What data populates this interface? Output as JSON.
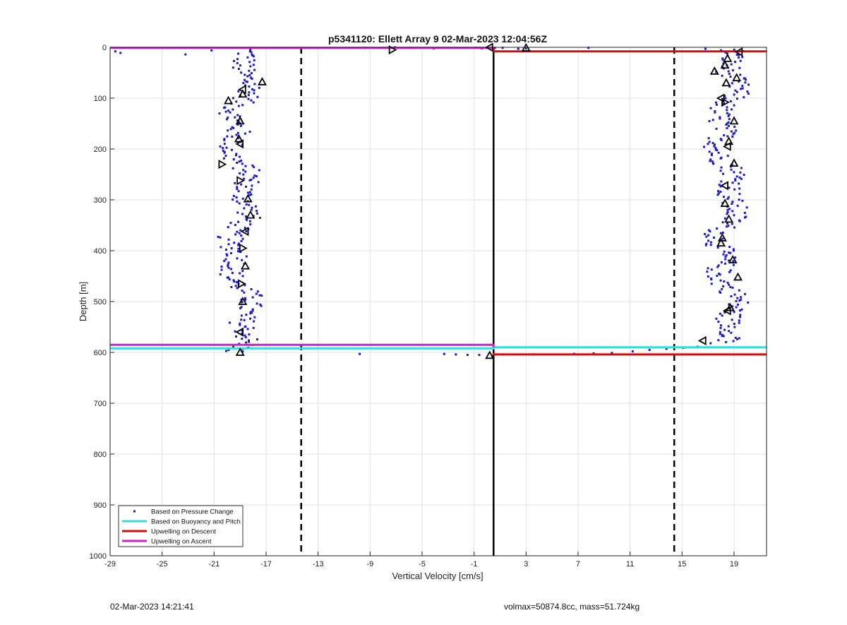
{
  "chart_data": {
    "type": "scatter",
    "title": "p5341120: Ellett Array 9 02-Mar-2023 12:04:56Z",
    "xlabel": "Vertical Velocity [cm/s]",
    "ylabel": "Depth [m]",
    "xlim": [
      -29,
      21.5
    ],
    "ylim": [
      0,
      1000
    ],
    "y_reversed": true,
    "grid": true,
    "legend_placement": "bottom-left",
    "xticks": [
      -29,
      -25,
      -21,
      -17,
      -13,
      -9,
      -5,
      -1,
      3,
      7,
      11,
      15,
      19
    ],
    "yticks": [
      0,
      100,
      200,
      300,
      400,
      500,
      600,
      700,
      800,
      900,
      1000
    ],
    "colors": {
      "pressure": "#1a1acc",
      "buoyancy": "#33dddd",
      "descent": "#cc1111",
      "ascent": "#cc22cc",
      "reference": "#000000",
      "grid": "#e2e2e2"
    },
    "legend": [
      {
        "label": "Based on Pressure Change",
        "marker": "dot",
        "color": "#1a1acc"
      },
      {
        "label": "Based on Buoyancy and Pitch",
        "marker": "line",
        "color": "#33dddd"
      },
      {
        "label": "Upwelling on Descent",
        "marker": "line",
        "color": "#cc1111"
      },
      {
        "label": "Upwelling on Ascent",
        "marker": "line",
        "color": "#cc22cc"
      }
    ],
    "reference_lines": {
      "solid_x": 0.5,
      "dashed_x": [
        -14.3,
        14.4
      ]
    },
    "series": [
      {
        "name": "Based on Pressure Change",
        "segments": [
          {
            "depth_from": 5,
            "depth_to": 600,
            "center": -19.0,
            "spread": 1.0
          },
          {
            "depth_from": 5,
            "depth_to": 580,
            "center": 18.4,
            "spread": 1.0
          }
        ],
        "surface_points": [
          [
            -28.6,
            8
          ],
          [
            -28.2,
            11
          ],
          [
            -23.2,
            14
          ],
          [
            -21.2,
            6
          ],
          [
            -9.4,
            1
          ],
          [
            -7.1,
            0
          ],
          [
            -5.9,
            1
          ],
          [
            -4.1,
            2
          ],
          [
            -0.9,
            1
          ],
          [
            -0.4,
            2
          ],
          [
            0.6,
            1
          ],
          [
            1.2,
            1
          ],
          [
            2.4,
            3
          ],
          [
            3.0,
            2
          ],
          [
            7.8,
            1
          ],
          [
            16.8,
            3
          ],
          [
            18.0,
            6
          ]
        ],
        "bottom_points": [
          [
            -9.8,
            603
          ],
          [
            -3.3,
            603
          ],
          [
            -2.4,
            604
          ],
          [
            -1.5,
            605
          ],
          [
            -0.6,
            605
          ],
          [
            0.4,
            607
          ],
          [
            1.2,
            604
          ],
          [
            3.6,
            604
          ],
          [
            6.7,
            603
          ],
          [
            8.2,
            602
          ],
          [
            9.6,
            601
          ],
          [
            11.2,
            598
          ],
          [
            12.5,
            595
          ],
          [
            13.8,
            593
          ],
          [
            15.1,
            591
          ],
          [
            16.2,
            589
          ],
          [
            17.2,
            582
          ],
          [
            17.8,
            576
          ],
          [
            18.2,
            568
          ]
        ]
      },
      {
        "name": "Based on Buoyancy and Pitch",
        "polyline": [
          [
            -29,
            592
          ],
          [
            0.5,
            592
          ],
          [
            0.5,
            590
          ],
          [
            21.5,
            590
          ]
        ]
      },
      {
        "name": "Upwelling on Descent",
        "polyline": [
          [
            0.5,
            0
          ],
          [
            0.5,
            8
          ],
          [
            21.5,
            8
          ]
        ],
        "polyline2": [
          [
            0.5,
            601
          ],
          [
            0.5,
            604
          ],
          [
            21.5,
            604
          ]
        ]
      },
      {
        "name": "Upwelling on Ascent",
        "polyline": [
          [
            -29,
            1
          ],
          [
            0.5,
            1
          ]
        ],
        "polyline2": [
          [
            -29,
            585
          ],
          [
            0.5,
            585
          ],
          [
            0.5,
            590
          ]
        ]
      },
      {
        "name": "triangle_markers",
        "points": [
          {
            "x": -19.0,
            "y": 600,
            "d": "up"
          },
          {
            "x": -19.0,
            "y": 560,
            "d": "left"
          },
          {
            "x": -18.8,
            "y": 500,
            "d": "up"
          },
          {
            "x": -18.9,
            "y": 465,
            "d": "right"
          },
          {
            "x": -18.6,
            "y": 430,
            "d": "up"
          },
          {
            "x": -18.8,
            "y": 395,
            "d": "right"
          },
          {
            "x": -18.6,
            "y": 362,
            "d": "left"
          },
          {
            "x": -18.2,
            "y": 330,
            "d": "up"
          },
          {
            "x": -18.4,
            "y": 298,
            "d": "up"
          },
          {
            "x": -19.0,
            "y": 262,
            "d": "right"
          },
          {
            "x": -20.4,
            "y": 230,
            "d": "right"
          },
          {
            "x": -19.0,
            "y": 190,
            "d": "left"
          },
          {
            "x": -19.1,
            "y": 180,
            "d": "up"
          },
          {
            "x": -19.0,
            "y": 145,
            "d": "up"
          },
          {
            "x": -19.9,
            "y": 105,
            "d": "up"
          },
          {
            "x": -18.8,
            "y": 92,
            "d": "up"
          },
          {
            "x": -18.8,
            "y": 83,
            "d": "left"
          },
          {
            "x": -17.3,
            "y": 68,
            "d": "up"
          },
          {
            "x": -7.3,
            "y": 5,
            "d": "right"
          },
          {
            "x": 0.2,
            "y": 0,
            "d": "left"
          },
          {
            "x": 3.0,
            "y": 1,
            "d": "up"
          },
          {
            "x": 0.2,
            "y": 606,
            "d": "up"
          },
          {
            "x": 19.4,
            "y": 9,
            "d": "left"
          },
          {
            "x": 18.5,
            "y": 22,
            "d": "up"
          },
          {
            "x": 18.3,
            "y": 35,
            "d": "up"
          },
          {
            "x": 17.5,
            "y": 47,
            "d": "up"
          },
          {
            "x": 19.2,
            "y": 60,
            "d": "up"
          },
          {
            "x": 18.4,
            "y": 70,
            "d": "up"
          },
          {
            "x": 18.0,
            "y": 100,
            "d": "left"
          },
          {
            "x": 18.3,
            "y": 108,
            "d": "right"
          },
          {
            "x": 19.0,
            "y": 145,
            "d": "up"
          },
          {
            "x": 18.6,
            "y": 185,
            "d": "up"
          },
          {
            "x": 18.5,
            "y": 195,
            "d": "left"
          },
          {
            "x": 19.0,
            "y": 228,
            "d": "up"
          },
          {
            "x": 18.3,
            "y": 272,
            "d": "left"
          },
          {
            "x": 18.3,
            "y": 307,
            "d": "up"
          },
          {
            "x": 18.6,
            "y": 338,
            "d": "up"
          },
          {
            "x": 18.1,
            "y": 375,
            "d": "up"
          },
          {
            "x": 18.0,
            "y": 385,
            "d": "up"
          },
          {
            "x": 18.9,
            "y": 418,
            "d": "up"
          },
          {
            "x": 19.3,
            "y": 452,
            "d": "up"
          },
          {
            "x": 18.7,
            "y": 512,
            "d": "up"
          },
          {
            "x": 18.5,
            "y": 518,
            "d": "left"
          },
          {
            "x": 16.6,
            "y": 577,
            "d": "left"
          }
        ]
      }
    ]
  },
  "footer": {
    "timestamp": "02-Mar-2023 14:21:41",
    "info": "volmax=50874.8cc, mass=51.724kg"
  }
}
